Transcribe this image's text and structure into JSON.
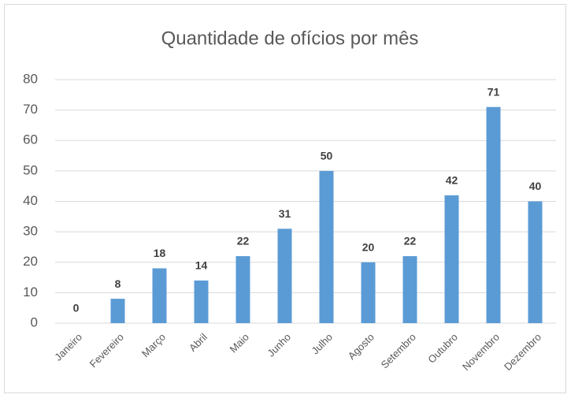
{
  "chart_data": {
    "type": "bar",
    "title": "Quantidade de ofícios por mês",
    "categories": [
      "Janeiro",
      "Fevereiro",
      "Março",
      "Abril",
      "Maio",
      "Junho",
      "Julho",
      "Agosto",
      "Setembro",
      "Outubro",
      "Novembro",
      "Dezembro"
    ],
    "values": [
      0,
      8,
      18,
      14,
      22,
      31,
      50,
      20,
      22,
      42,
      71,
      40
    ],
    "color": "#5b9bd5",
    "ylim": [
      0,
      80
    ],
    "yticks": [
      0,
      10,
      20,
      30,
      40,
      50,
      60,
      70,
      80
    ],
    "grid": true
  }
}
